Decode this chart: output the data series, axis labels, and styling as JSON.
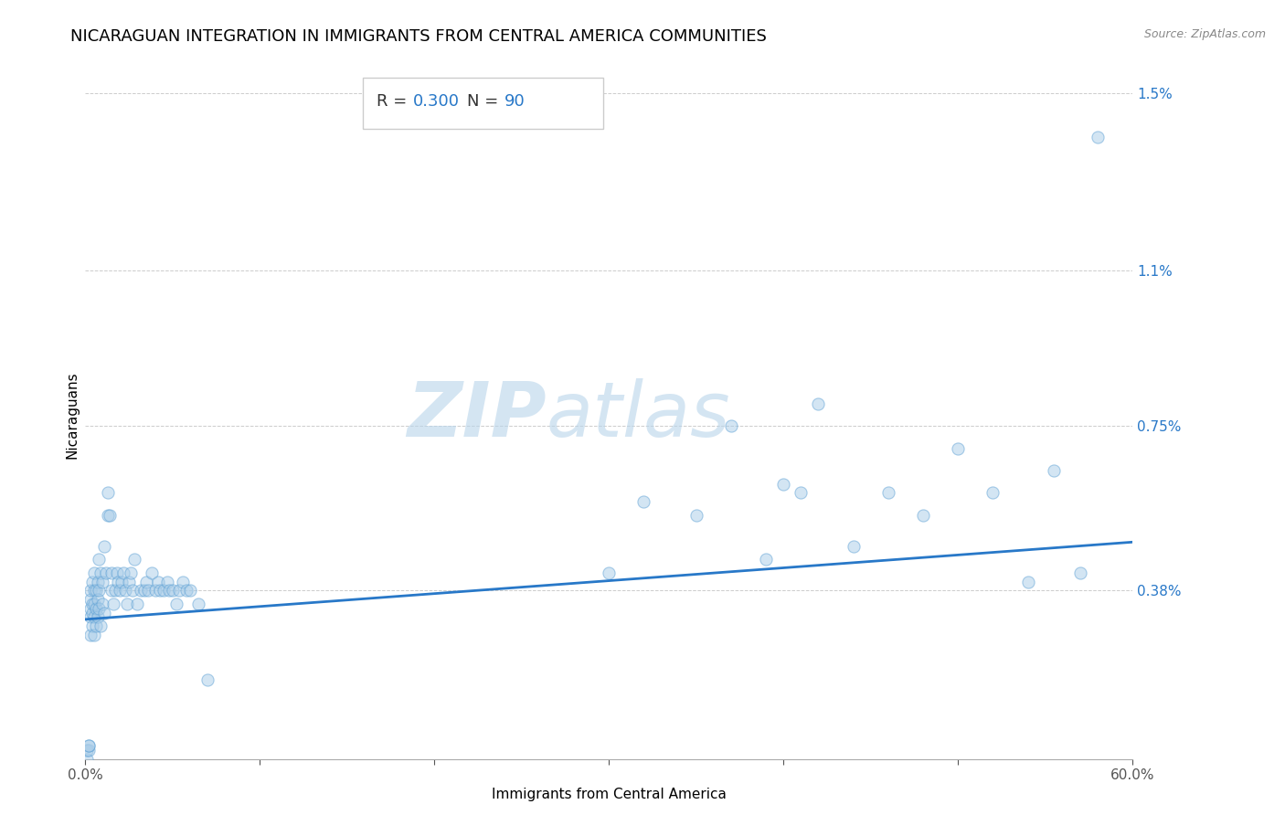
{
  "title": "NICARAGUAN INTEGRATION IN IMMIGRANTS FROM CENTRAL AMERICA COMMUNITIES",
  "source": "Source: ZipAtlas.com",
  "xlabel": "Immigrants from Central America",
  "ylabel": "Nicaraguans",
  "R": 0.3,
  "N": 90,
  "xlim": [
    0,
    0.6
  ],
  "ylim": [
    0,
    0.0155
  ],
  "yticks": [
    0.0,
    0.0038,
    0.0075,
    0.011,
    0.015
  ],
  "ytick_labels": [
    "",
    "0.38%",
    "0.75%",
    "1.1%",
    "1.5%"
  ],
  "xticks": [
    0.0,
    0.1,
    0.2,
    0.3,
    0.4,
    0.5,
    0.6
  ],
  "xtick_labels": [
    "0.0%",
    "",
    "",
    "",
    "",
    "",
    "60.0%"
  ],
  "scatter_color": "#a8cce8",
  "scatter_edgecolor": "#5a9fd4",
  "line_color": "#2878C8",
  "regression_y_intercept": 0.00315,
  "regression_slope": 0.0029,
  "watermark_zip": "ZIP",
  "watermark_atlas": "atlas",
  "title_fontsize": 13,
  "label_fontsize": 11,
  "tick_fontsize": 11,
  "scatter_alpha": 0.5,
  "scatter_size": 90,
  "points_x": [
    0.001,
    0.001,
    0.002,
    0.002,
    0.002,
    0.003,
    0.003,
    0.003,
    0.003,
    0.003,
    0.004,
    0.004,
    0.004,
    0.004,
    0.005,
    0.005,
    0.005,
    0.005,
    0.005,
    0.006,
    0.006,
    0.006,
    0.007,
    0.007,
    0.007,
    0.008,
    0.008,
    0.008,
    0.009,
    0.009,
    0.01,
    0.01,
    0.011,
    0.011,
    0.012,
    0.013,
    0.013,
    0.014,
    0.015,
    0.015,
    0.016,
    0.017,
    0.018,
    0.019,
    0.02,
    0.021,
    0.022,
    0.023,
    0.024,
    0.025,
    0.026,
    0.027,
    0.028,
    0.03,
    0.032,
    0.034,
    0.035,
    0.036,
    0.038,
    0.04,
    0.042,
    0.043,
    0.045,
    0.047,
    0.048,
    0.05,
    0.052,
    0.054,
    0.056,
    0.058,
    0.06,
    0.065,
    0.07,
    0.3,
    0.32,
    0.35,
    0.37,
    0.39,
    0.4,
    0.41,
    0.42,
    0.44,
    0.46,
    0.48,
    0.5,
    0.52,
    0.54,
    0.555,
    0.57,
    0.58
  ],
  "points_y": [
    0.0,
    0.0002,
    0.0002,
    0.0003,
    0.0003,
    0.0028,
    0.0032,
    0.0034,
    0.0036,
    0.0038,
    0.003,
    0.0033,
    0.0035,
    0.004,
    0.0028,
    0.0032,
    0.0035,
    0.0038,
    0.0042,
    0.003,
    0.0034,
    0.0038,
    0.0032,
    0.0036,
    0.004,
    0.0034,
    0.0038,
    0.0045,
    0.003,
    0.0042,
    0.0035,
    0.004,
    0.0033,
    0.0048,
    0.0042,
    0.0055,
    0.006,
    0.0055,
    0.0038,
    0.0042,
    0.0035,
    0.0038,
    0.0042,
    0.004,
    0.0038,
    0.004,
    0.0042,
    0.0038,
    0.0035,
    0.004,
    0.0042,
    0.0038,
    0.0045,
    0.0035,
    0.0038,
    0.0038,
    0.004,
    0.0038,
    0.0042,
    0.0038,
    0.004,
    0.0038,
    0.0038,
    0.004,
    0.0038,
    0.0038,
    0.0035,
    0.0038,
    0.004,
    0.0038,
    0.0038,
    0.0035,
    0.0018,
    0.0042,
    0.0058,
    0.0055,
    0.0075,
    0.0045,
    0.0062,
    0.006,
    0.008,
    0.0048,
    0.006,
    0.0055,
    0.007,
    0.006,
    0.004,
    0.0065,
    0.0042,
    0.014
  ]
}
